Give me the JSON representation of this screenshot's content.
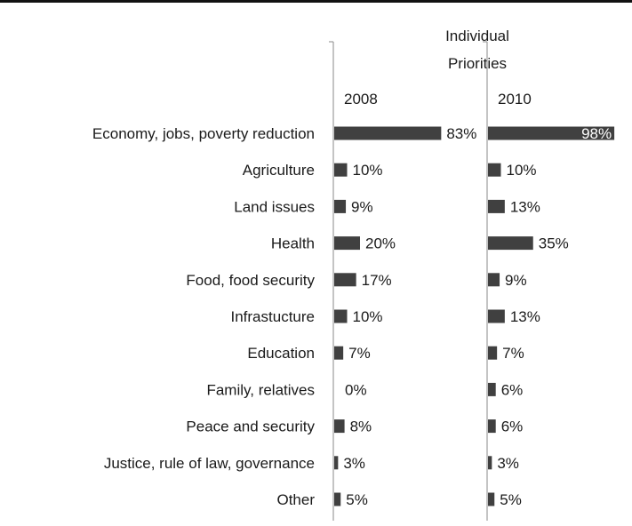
{
  "chart_data": {
    "type": "bar",
    "orientation": "horizontal",
    "title": "Individual\nPriorities",
    "categories": [
      "Economy, jobs, poverty reduction",
      "Agriculture",
      "Land issues",
      "Health",
      "Food, food security",
      "Infrastucture",
      "Education",
      "Family, relatives",
      "Peace and security",
      "Justice, rule of law, governance",
      "Other"
    ],
    "series": [
      {
        "name": "2008",
        "values": [
          83,
          10,
          9,
          20,
          17,
          10,
          7,
          0,
          8,
          3,
          5
        ]
      },
      {
        "name": "2010",
        "values": [
          98,
          10,
          13,
          35,
          9,
          13,
          7,
          6,
          6,
          3,
          5
        ]
      }
    ],
    "value_suffix": "%",
    "xlim": [
      0,
      100
    ],
    "grid": false,
    "bar_color": "#404040"
  }
}
